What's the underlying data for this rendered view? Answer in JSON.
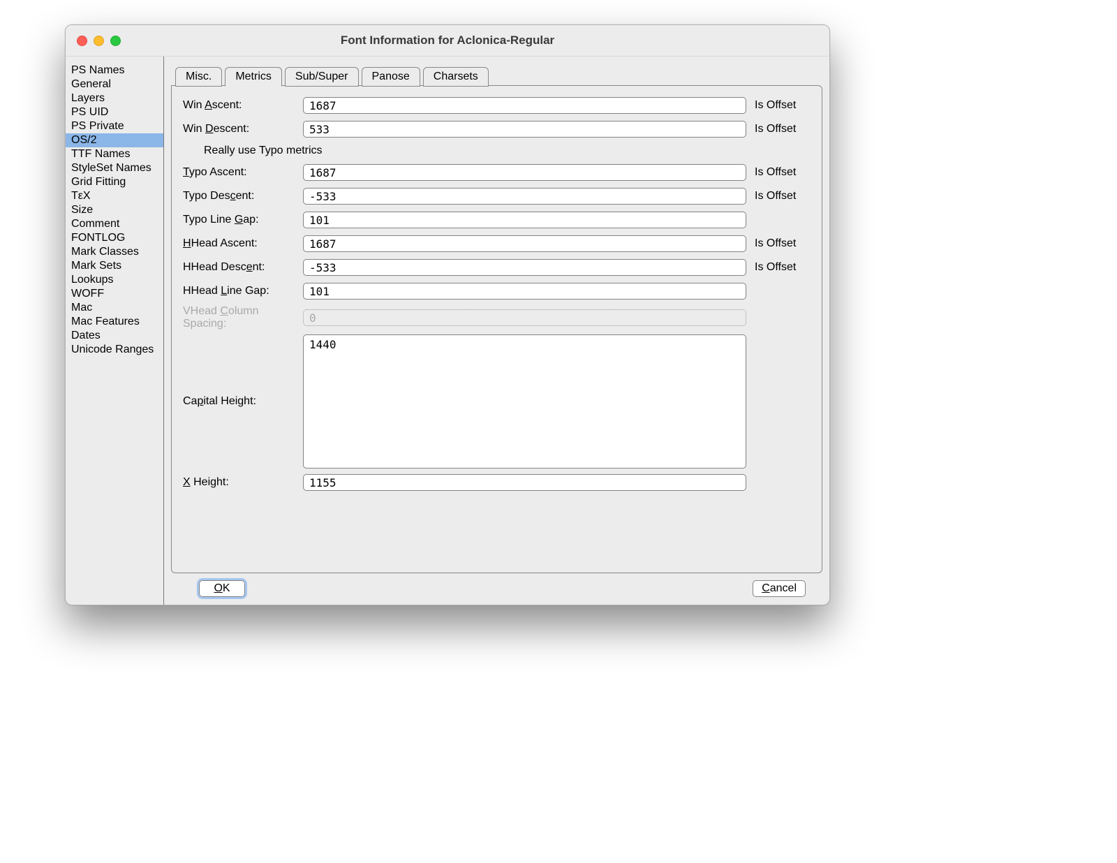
{
  "window": {
    "title": "Font Information for Aclonica-Regular"
  },
  "sidebar": {
    "items": [
      {
        "label": "PS Names"
      },
      {
        "label": "General"
      },
      {
        "label": "Layers"
      },
      {
        "label": "PS UID"
      },
      {
        "label": "PS Private"
      },
      {
        "label": "OS/2"
      },
      {
        "label": "TTF Names"
      },
      {
        "label": "StyleSet Names"
      },
      {
        "label": "Grid Fitting"
      },
      {
        "label": "TεX"
      },
      {
        "label": "Size"
      },
      {
        "label": "Comment"
      },
      {
        "label": "FONTLOG"
      },
      {
        "label": "Mark Classes"
      },
      {
        "label": "Mark Sets"
      },
      {
        "label": "Lookups"
      },
      {
        "label": "WOFF"
      },
      {
        "label": "Mac"
      },
      {
        "label": "Mac Features"
      },
      {
        "label": "Dates"
      },
      {
        "label": "Unicode Ranges"
      }
    ],
    "selected_index": 5
  },
  "tabs": {
    "items": [
      {
        "label": "Misc."
      },
      {
        "label": "Metrics"
      },
      {
        "label": "Sub/Super"
      },
      {
        "label": "Panose"
      },
      {
        "label": "Charsets"
      }
    ],
    "active_index": 1
  },
  "metrics": {
    "win_ascent": {
      "label_pre": "Win ",
      "ul": "A",
      "label_post": "scent:",
      "value": "1687",
      "offset": "Is Offset"
    },
    "win_descent": {
      "label_pre": "Win ",
      "ul": "D",
      "label_post": "escent:",
      "value": "533",
      "offset": "Is Offset"
    },
    "typo_note": "Really use Typo metrics",
    "typo_ascent": {
      "label_pre": "",
      "ul": "T",
      "label_post": "ypo Ascent:",
      "value": "1687",
      "offset": "Is Offset"
    },
    "typo_descent": {
      "label_pre": "Typo Des",
      "ul": "c",
      "label_post": "ent:",
      "value": "-533",
      "offset": "Is Offset"
    },
    "typo_line_gap": {
      "label_pre": "Typo Line ",
      "ul": "G",
      "label_post": "ap:",
      "value": "101",
      "offset": ""
    },
    "hhead_ascent": {
      "label_pre": "",
      "ul": "H",
      "label_post": "Head Ascent:",
      "value": "1687",
      "offset": "Is Offset"
    },
    "hhead_descent": {
      "label_pre": "HHead Desc",
      "ul": "e",
      "label_post": "nt:",
      "value": "-533",
      "offset": "Is Offset"
    },
    "hhead_line_gap": {
      "label_pre": "HHead ",
      "ul": "L",
      "label_post": "ine Gap:",
      "value": "101",
      "offset": ""
    },
    "vhead_col_space": {
      "label_pre": "VHead ",
      "ul": "C",
      "label_post": "olumn Spacing:",
      "value": "0",
      "offset": "",
      "disabled": true
    },
    "capital_height": {
      "label_pre": "Ca",
      "ul": "p",
      "label_post": "ital Height:",
      "value": "1440",
      "offset": ""
    },
    "x_height": {
      "label_pre": "",
      "ul": "X",
      "label_post": " Height:",
      "value": "1155",
      "offset": ""
    }
  },
  "buttons": {
    "ok": {
      "ul": "O",
      "rest": "K"
    },
    "cancel": {
      "ul": "C",
      "rest": "ancel"
    }
  },
  "style": {
    "window_bg": "#ececec",
    "border_color": "#888888",
    "selection_color": "#8bb6e8",
    "focus_ring": "#a7c6ee",
    "field_border": "#828282",
    "disabled_text": "#a9a9a9",
    "mono_font": "Menlo, Consolas, monospace",
    "label_fontsize": 16,
    "title_fontsize": 17
  }
}
